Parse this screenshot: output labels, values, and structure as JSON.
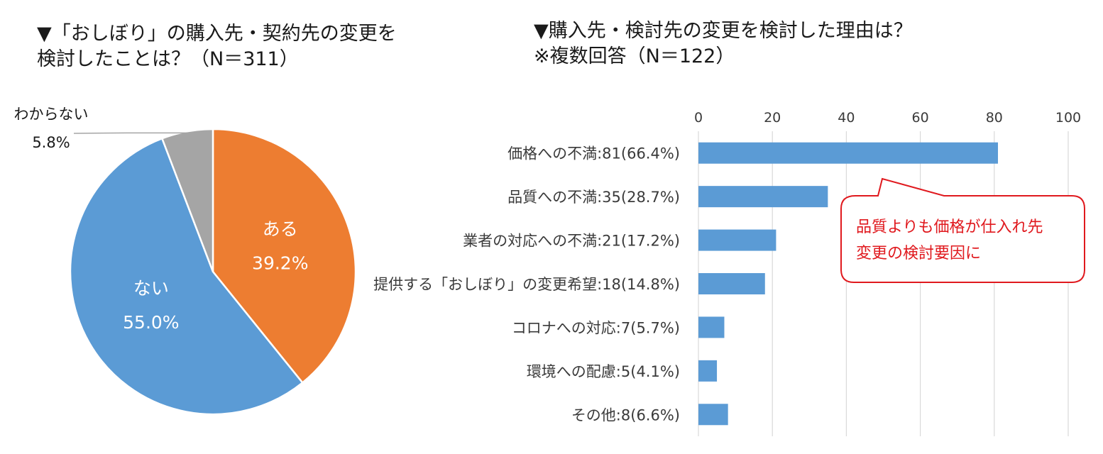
{
  "left_title": {
    "line1": "▼「おしぼり」の購入先・契約先の変更を",
    "line2": "検討したことは？（N＝311）"
  },
  "right_title": {
    "line1": "▼購入先・検討先の変更を検討した理由は？",
    "line2": "※複数回答（N＝122）"
  },
  "callout": {
    "line1": "品質よりも価格が仕入れ先",
    "line2": "変更の検討要因に",
    "color": "#e0191e"
  },
  "chart_data": [
    {
      "type": "pie",
      "title": "「おしぼり」の購入先・契約先の変更を検討したことは？（N＝311）",
      "slices": [
        {
          "name": "ある",
          "value": 39.2,
          "label": "39.2%",
          "color": "#ed7d31"
        },
        {
          "name": "ない",
          "value": 55.0,
          "label": "55.0%",
          "color": "#5b9bd5"
        },
        {
          "name": "わからない",
          "value": 5.8,
          "label": "5.8%",
          "color": "#a5a5a5"
        }
      ]
    },
    {
      "type": "bar",
      "orientation": "horizontal",
      "title": "購入先・検討先の変更を検討した理由は？※複数回答（N＝122）",
      "categories": [
        "価格への不満:81(66.4%)",
        "品質への不満:35(28.7%)",
        "業者の対応への不満:21(17.2%)",
        "提供する「おしぼり」の変更希望:18(14.8%)",
        "コロナへの対応:7(5.7%)",
        "環境への配慮:5(4.1%)",
        "その他:8(6.6%)"
      ],
      "values": [
        81,
        35,
        21,
        18,
        7,
        5,
        8
      ],
      "xlim": [
        0,
        100
      ],
      "xticks": [
        "0",
        "20",
        "40",
        "60",
        "80",
        "100"
      ],
      "bar_color": "#5b9bd5",
      "grid": true,
      "axis_position": "top"
    }
  ]
}
